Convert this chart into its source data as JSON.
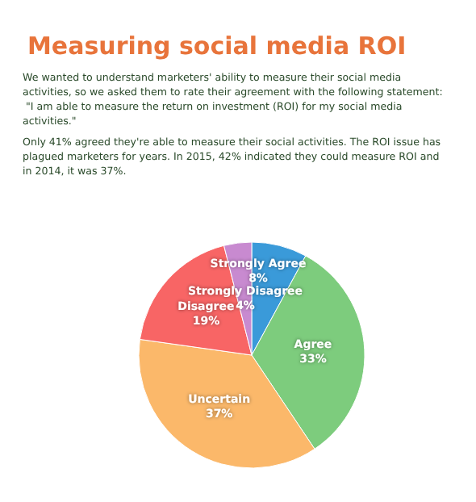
{
  "chart_data": {
    "type": "pie",
    "title": "Measuring social media ROI",
    "subtitle": "We wanted to understand marketers' ability to measure their social media activities, so we asked them to rate their agreement with the following statement: \"I am able to measure the return on investment (ROI) for my social media activities.\"",
    "annotations": [
      "Only 41% agreed they're able to measure their social activities. The ROI issue has plagued marketers for years. In 2015, 42% indicated they could measure ROI and in 2014, it was 37%."
    ],
    "categories": [
      "Strongly Agree",
      "Agree",
      "Uncertain",
      "Disagree",
      "Strongly Disagree"
    ],
    "values": [
      8,
      33,
      37,
      19,
      4
    ],
    "value_labels": [
      "8%",
      "33%",
      "37%",
      "19%",
      "4%"
    ],
    "colors": [
      "#3a9ad9",
      "#7dcc7d",
      "#fbb86a",
      "#f86565",
      "#c88ad0"
    ],
    "legend": false
  }
}
